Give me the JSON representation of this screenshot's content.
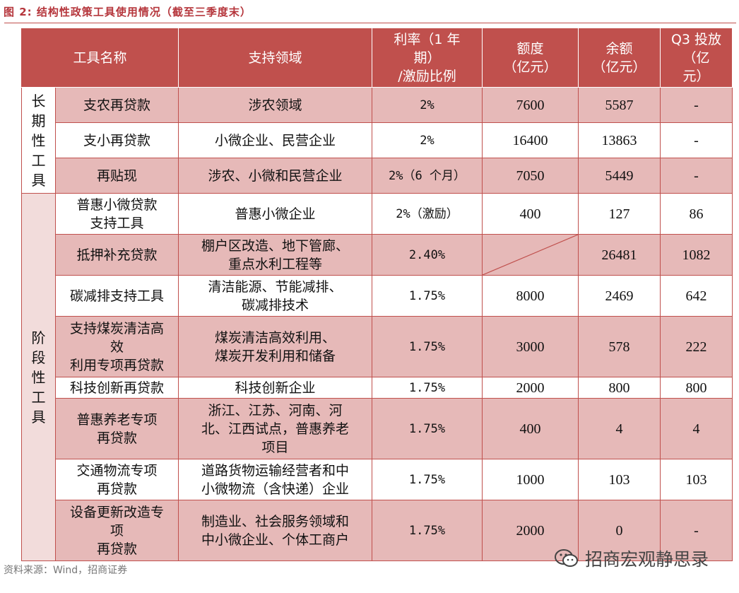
{
  "title": "图 2:  结构性政策工具使用情况（截至三季度末）",
  "headers": [
    "工具名称",
    "支持领域",
    "利率（1 年期）/激励比例",
    "额度（亿元）",
    "余额（亿元）",
    "Q3 投放（亿元）"
  ],
  "header_lines": {
    "name": [
      "工具名称"
    ],
    "field": [
      "支持领域"
    ],
    "rate": [
      "利率（1 年",
      "期）",
      "/激励比例"
    ],
    "quota": [
      "额度",
      "（亿元）"
    ],
    "balance": [
      "余额",
      "（亿元）"
    ],
    "q3": [
      "Q3 投放",
      "（亿",
      "元）"
    ]
  },
  "groups": [
    {
      "label": "长期性工具",
      "chars": [
        "长",
        "期",
        "性",
        "工",
        "具"
      ]
    },
    {
      "label": "阶段性工具",
      "chars": [
        "阶",
        "段",
        "性",
        "工",
        "具"
      ]
    }
  ],
  "rows": [
    {
      "name": [
        "支农再贷款"
      ],
      "field": [
        "涉农领域"
      ],
      "rate": "2%",
      "quota": "7600",
      "balance": "5587",
      "q3": "-"
    },
    {
      "name": [
        "支小再贷款"
      ],
      "field": [
        "小微企业、民营企业"
      ],
      "rate": "2%",
      "quota": "16400",
      "balance": "13863",
      "q3": "-"
    },
    {
      "name": [
        "再贴现"
      ],
      "field": [
        "涉农、小微和民营企业"
      ],
      "rate": "2%（6 个月）",
      "quota": "7050",
      "balance": "5449",
      "q3": "-"
    },
    {
      "name": [
        "普惠小微贷款",
        "支持工具"
      ],
      "field": [
        "普惠小微企业"
      ],
      "rate": "2%（激励）",
      "quota": "400",
      "balance": "127",
      "q3": "86"
    },
    {
      "name": [
        "抵押补充贷款"
      ],
      "field": [
        "棚户区改造、地下管廊、",
        "重点水利工程等"
      ],
      "rate": "2.40%",
      "quota": "",
      "balance": "26481",
      "q3": "1082"
    },
    {
      "name": [
        "碳减排支持工具"
      ],
      "field": [
        "清洁能源、节能减排、",
        "碳减排技术"
      ],
      "rate": "1.75%",
      "quota": "8000",
      "balance": "2469",
      "q3": "642"
    },
    {
      "name": [
        "支持煤炭清洁高",
        "效",
        "利用专项再贷款"
      ],
      "field": [
        "煤炭清洁高效利用、",
        "煤炭开发利用和储备"
      ],
      "rate": "1.75%",
      "quota": "3000",
      "balance": "578",
      "q3": "222"
    },
    {
      "name": [
        "科技创新再贷款"
      ],
      "field": [
        "科技创新企业"
      ],
      "rate": "1.75%",
      "quota": "2000",
      "balance": "800",
      "q3": "800"
    },
    {
      "name": [
        "普惠养老专项",
        "再贷款"
      ],
      "field": [
        "浙江、江苏、河南、河",
        "北、江西试点，普惠养老",
        "项目"
      ],
      "rate": "1.75%",
      "quota": "400",
      "balance": "4",
      "q3": "4"
    },
    {
      "name": [
        "交通物流专项",
        "再贷款"
      ],
      "field": [
        "道路货物运输经营者和中",
        "小微物流（含快递）企业"
      ],
      "rate": "1.75%",
      "quota": "1000",
      "balance": "103",
      "q3": "103"
    },
    {
      "name": [
        "设备更新改造专",
        "项",
        "再贷款"
      ],
      "field": [
        "制造业、社会服务领域和",
        "中小微企业、个体工商户"
      ],
      "rate": "1.75%",
      "quota": "2000",
      "balance": "0",
      "q3": "-"
    }
  ],
  "source": "资料来源：Wind，招商证券",
  "watermark": "招商宏观静思录",
  "colors": {
    "header": "#c0504d",
    "pink_row": "#e6b9b8",
    "title": "#b5353b"
  }
}
